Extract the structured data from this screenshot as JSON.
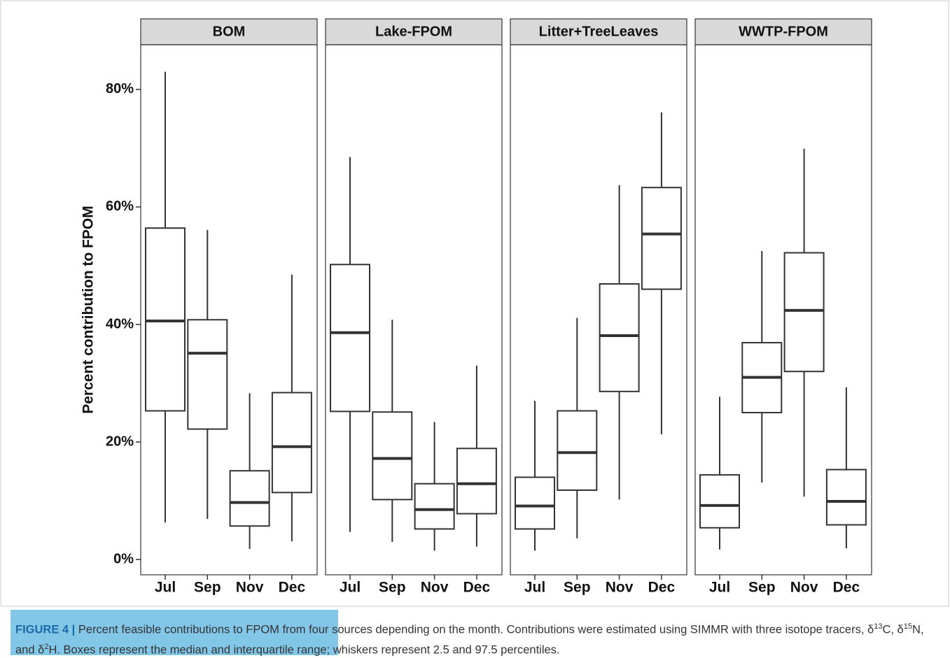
{
  "chart_data": {
    "type": "boxplot",
    "ylabel": "Percent contribution to FPOM",
    "ylim": [
      -2.6,
      87.6
    ],
    "yticks": [
      {
        "value": 0,
        "label": "0%"
      },
      {
        "value": 20,
        "label": "20%"
      },
      {
        "value": 40,
        "label": "40%"
      },
      {
        "value": 60,
        "label": "60%"
      },
      {
        "value": 80,
        "label": "80%"
      }
    ],
    "facets": [
      {
        "title": "BOM",
        "categories": [
          "Jul",
          "Sep",
          "Nov",
          "Dec"
        ],
        "whislo": [
          6.3,
          6.9,
          1.8,
          3.1
        ],
        "q1": [
          25.3,
          22.2,
          5.7,
          11.4
        ],
        "med": [
          40.6,
          35.1,
          9.7,
          19.2
        ],
        "q3": [
          56.4,
          40.8,
          15.1,
          28.4
        ],
        "whishi": [
          83.0,
          56.1,
          28.3,
          48.5
        ]
      },
      {
        "title": "Lake-FPOM",
        "categories": [
          "Jul",
          "Sep",
          "Nov",
          "Dec"
        ],
        "whislo": [
          4.7,
          3.0,
          1.5,
          2.2
        ],
        "q1": [
          25.2,
          10.2,
          5.2,
          7.8
        ],
        "med": [
          38.6,
          17.2,
          8.5,
          12.9
        ],
        "q3": [
          50.2,
          25.1,
          12.9,
          18.9
        ],
        "whishi": [
          68.5,
          40.8,
          23.4,
          33.0
        ]
      },
      {
        "title": "Litter+TreeLeaves",
        "categories": [
          "Jul",
          "Sep",
          "Nov",
          "Dec"
        ],
        "whislo": [
          1.5,
          3.6,
          10.2,
          21.3
        ],
        "q1": [
          5.2,
          11.8,
          28.6,
          46.0
        ],
        "med": [
          9.1,
          18.2,
          38.1,
          55.4
        ],
        "q3": [
          14.0,
          25.3,
          46.9,
          63.3
        ],
        "whishi": [
          27.0,
          41.1,
          63.7,
          76.1
        ]
      },
      {
        "title": "WWTP-FPOM",
        "categories": [
          "Jul",
          "Sep",
          "Nov",
          "Dec"
        ],
        "whislo": [
          1.7,
          13.1,
          10.7,
          1.9
        ],
        "q1": [
          5.4,
          25.0,
          32.0,
          5.9
        ],
        "med": [
          9.2,
          31.0,
          42.4,
          9.9
        ],
        "q3": [
          14.4,
          36.9,
          52.2,
          15.3
        ],
        "whishi": [
          27.7,
          52.5,
          69.9,
          29.3
        ]
      }
    ],
    "caption_label": "FIGURE 4 |",
    "caption_parts": [
      " Percent feasible contributions to FPOM from four sources depending on the month. Contributions were estimated using SIMMR with three isotope tracers, δ",
      "13",
      "C, δ",
      "15",
      "N, and δ",
      "2",
      "H. Boxes represent the median and interquartile range; whiskers represent 2.5 and 97.5 percentiles."
    ]
  }
}
